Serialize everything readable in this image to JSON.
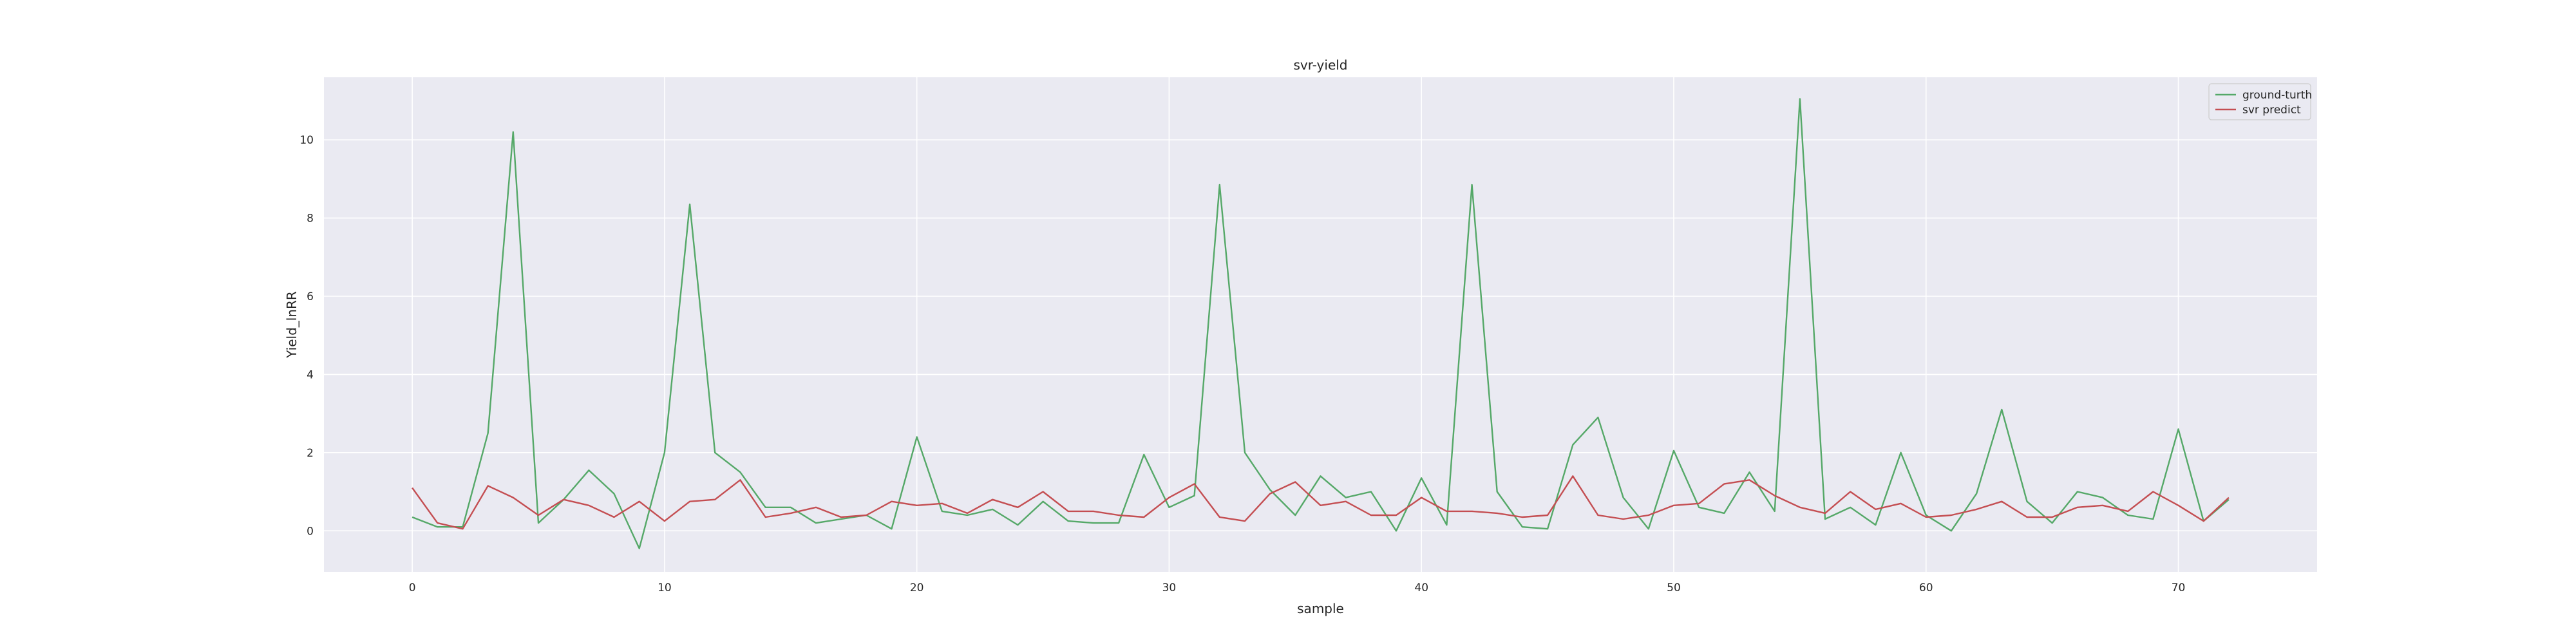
{
  "chart_data": {
    "type": "line",
    "title": "svr-yield",
    "xlabel": "sample",
    "ylabel": "Yield_lnRR",
    "xlim": [
      -3.5,
      75.5
    ],
    "ylim": [
      -1.05,
      11.6
    ],
    "xticks": [
      0,
      10,
      20,
      30,
      40,
      50,
      60,
      70
    ],
    "yticks": [
      0,
      2,
      4,
      6,
      8,
      10
    ],
    "grid": true,
    "legend_position": "top-right",
    "background": "#eaeaf2",
    "x": [
      0,
      1,
      2,
      3,
      4,
      5,
      6,
      7,
      8,
      9,
      10,
      11,
      12,
      13,
      14,
      15,
      16,
      17,
      18,
      19,
      20,
      21,
      22,
      23,
      24,
      25,
      26,
      27,
      28,
      29,
      30,
      31,
      32,
      33,
      34,
      35,
      36,
      37,
      38,
      39,
      40,
      41,
      42,
      43,
      44,
      45,
      46,
      47,
      48,
      49,
      50,
      51,
      52,
      53,
      54,
      55,
      56,
      57,
      58,
      59,
      60,
      61,
      62,
      63,
      64,
      65,
      66,
      67,
      68,
      69,
      70,
      71,
      72
    ],
    "series": [
      {
        "name": "ground-turth",
        "color": "#55a868",
        "values": [
          0.35,
          0.1,
          0.1,
          2.5,
          10.2,
          0.2,
          0.8,
          1.55,
          0.95,
          -0.45,
          2.0,
          8.35,
          2.0,
          1.5,
          0.6,
          0.6,
          0.2,
          0.3,
          0.4,
          0.05,
          2.4,
          0.5,
          0.4,
          0.55,
          0.15,
          0.75,
          0.25,
          0.2,
          0.2,
          1.95,
          0.6,
          0.9,
          8.85,
          2.0,
          1.05,
          0.4,
          1.4,
          0.85,
          1.0,
          0.0,
          1.35,
          0.15,
          8.85,
          1.0,
          0.1,
          0.05,
          2.2,
          2.9,
          0.85,
          0.05,
          2.05,
          0.6,
          0.45,
          1.5,
          0.5,
          11.05,
          0.3,
          0.6,
          0.15,
          2.0,
          0.4,
          0.0,
          0.95,
          3.1,
          0.75,
          0.2,
          1.0,
          0.85,
          0.4,
          0.3,
          2.6,
          0.25,
          0.8
        ]
      },
      {
        "name": "svr predict",
        "color": "#c44e52",
        "values": [
          1.1,
          0.2,
          0.05,
          1.15,
          0.85,
          0.4,
          0.8,
          0.65,
          0.35,
          0.75,
          0.25,
          0.75,
          0.8,
          1.3,
          0.35,
          0.45,
          0.6,
          0.35,
          0.4,
          0.75,
          0.65,
          0.7,
          0.45,
          0.8,
          0.6,
          1.0,
          0.5,
          0.5,
          0.4,
          0.35,
          0.85,
          1.2,
          0.35,
          0.25,
          0.95,
          1.25,
          0.65,
          0.75,
          0.4,
          0.4,
          0.85,
          0.5,
          0.5,
          0.45,
          0.35,
          0.4,
          1.4,
          0.4,
          0.3,
          0.4,
          0.65,
          0.7,
          1.2,
          1.3,
          0.9,
          0.6,
          0.45,
          1.0,
          0.55,
          0.7,
          0.35,
          0.4,
          0.55,
          0.75,
          0.35,
          0.35,
          0.6,
          0.65,
          0.5,
          1.0,
          0.65,
          0.25,
          0.85
        ]
      }
    ]
  }
}
